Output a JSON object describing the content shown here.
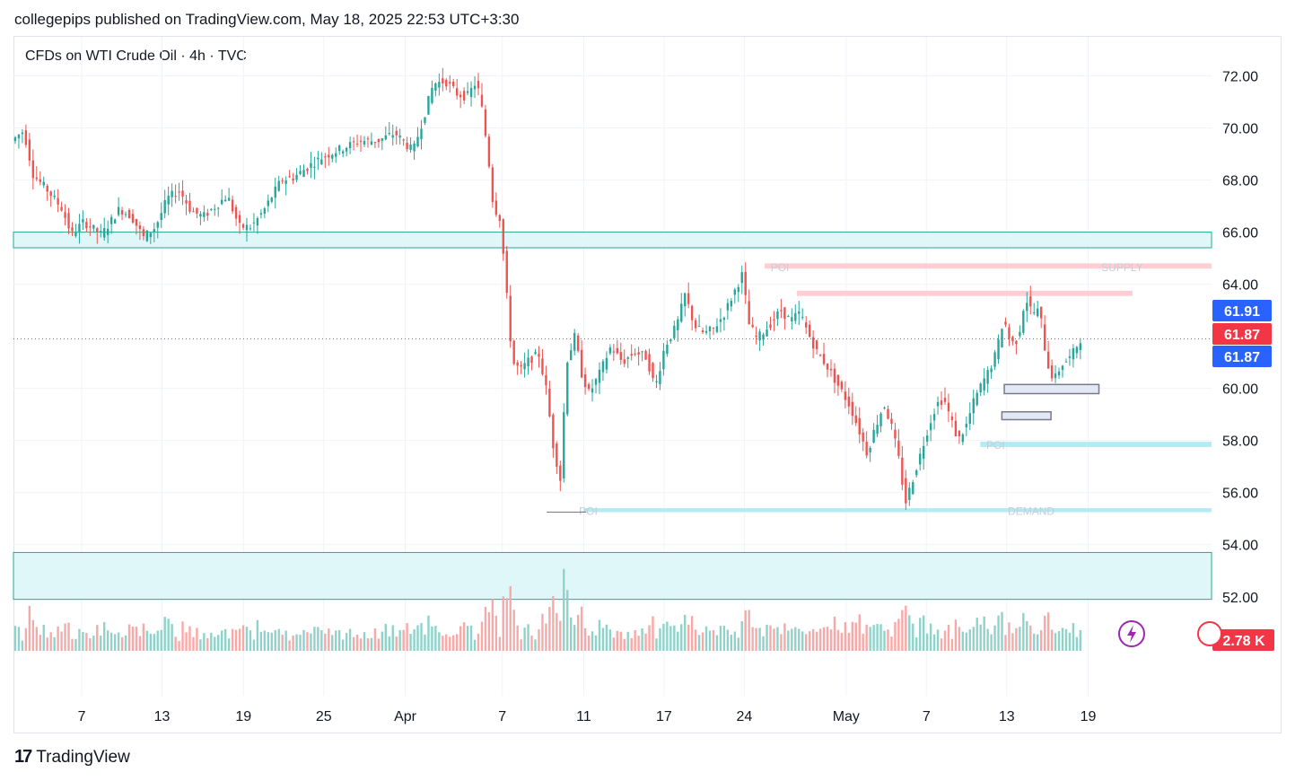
{
  "header": {
    "published_by": "collegepips published on TradingView.com, May 18, 2025 22:53 UTC+3:30"
  },
  "symbol": {
    "title": "CFDs on WTI Crude Oil · 4h · TVC"
  },
  "footer": {
    "brand": "TradingView",
    "logo_mark": "17"
  },
  "colors": {
    "up": "#26a69a",
    "down": "#ef5350",
    "zone_teal": "#b2ebf2",
    "zone_red": "#ffcdd2",
    "price_blue": "#2962ff",
    "price_red": "#f23645"
  },
  "chart_data": {
    "type": "candlestick",
    "title": "CFDs on WTI Crude Oil · 4h · TVC",
    "ylim": [
      48.2,
      73.5
    ],
    "y_ticks": [
      "72.00",
      "70.00",
      "68.00",
      "66.00",
      "64.00",
      "60.00",
      "58.00",
      "56.00",
      "54.00",
      "52.00"
    ],
    "x_ticks": [
      {
        "label": "7",
        "t": 0.057
      },
      {
        "label": "13",
        "t": 0.124
      },
      {
        "label": "19",
        "t": 0.192
      },
      {
        "label": "25",
        "t": 0.259
      },
      {
        "label": "Apr",
        "t": 0.327
      },
      {
        "label": "7",
        "t": 0.408
      },
      {
        "label": "11",
        "t": 0.476
      },
      {
        "label": "17",
        "t": 0.543
      },
      {
        "label": "24",
        "t": 0.61
      },
      {
        "label": "May",
        "t": 0.695
      },
      {
        "label": "7",
        "t": 0.762
      },
      {
        "label": "13",
        "t": 0.829
      },
      {
        "label": "19",
        "t": 0.897
      }
    ],
    "price_path": [
      [
        0.0,
        69.5
      ],
      [
        0.01,
        69.9
      ],
      [
        0.018,
        68.2
      ],
      [
        0.03,
        67.6
      ],
      [
        0.042,
        66.9
      ],
      [
        0.05,
        65.9
      ],
      [
        0.06,
        66.4
      ],
      [
        0.075,
        65.9
      ],
      [
        0.09,
        66.9
      ],
      [
        0.1,
        66.6
      ],
      [
        0.11,
        65.8
      ],
      [
        0.12,
        66.2
      ],
      [
        0.13,
        67.3
      ],
      [
        0.14,
        67.6
      ],
      [
        0.15,
        66.8
      ],
      [
        0.16,
        66.6
      ],
      [
        0.17,
        67.0
      ],
      [
        0.18,
        67.4
      ],
      [
        0.19,
        66.2
      ],
      [
        0.2,
        66.2
      ],
      [
        0.21,
        66.8
      ],
      [
        0.225,
        68.0
      ],
      [
        0.235,
        68.1
      ],
      [
        0.25,
        68.6
      ],
      [
        0.26,
        68.9
      ],
      [
        0.275,
        69.2
      ],
      [
        0.29,
        69.5
      ],
      [
        0.305,
        69.5
      ],
      [
        0.32,
        69.8
      ],
      [
        0.335,
        69.1
      ],
      [
        0.345,
        70.6
      ],
      [
        0.352,
        71.7
      ],
      [
        0.362,
        71.8
      ],
      [
        0.372,
        71.3
      ],
      [
        0.38,
        71.2
      ],
      [
        0.388,
        71.8
      ],
      [
        0.393,
        70.6
      ],
      [
        0.398,
        68.8
      ],
      [
        0.402,
        67.0
      ],
      [
        0.408,
        66.5
      ],
      [
        0.412,
        64.2
      ],
      [
        0.418,
        61.0
      ],
      [
        0.425,
        60.7
      ],
      [
        0.432,
        61.1
      ],
      [
        0.44,
        61.3
      ],
      [
        0.446,
        60.0
      ],
      [
        0.452,
        57.8
      ],
      [
        0.458,
        56.5
      ],
      [
        0.463,
        61.0
      ],
      [
        0.47,
        62.0
      ],
      [
        0.476,
        60.5
      ],
      [
        0.482,
        59.8
      ],
      [
        0.49,
        60.5
      ],
      [
        0.5,
        61.6
      ],
      [
        0.51,
        61.0
      ],
      [
        0.52,
        61.4
      ],
      [
        0.53,
        61.2
      ],
      [
        0.537,
        60.0
      ],
      [
        0.545,
        61.6
      ],
      [
        0.555,
        62.4
      ],
      [
        0.562,
        63.6
      ],
      [
        0.57,
        62.4
      ],
      [
        0.578,
        62.1
      ],
      [
        0.586,
        62.3
      ],
      [
        0.594,
        62.8
      ],
      [
        0.602,
        63.6
      ],
      [
        0.61,
        64.4
      ],
      [
        0.615,
        62.5
      ],
      [
        0.622,
        61.9
      ],
      [
        0.632,
        62.4
      ],
      [
        0.642,
        63.0
      ],
      [
        0.65,
        62.6
      ],
      [
        0.658,
        62.9
      ],
      [
        0.664,
        62.2
      ],
      [
        0.672,
        61.4
      ],
      [
        0.68,
        60.9
      ],
      [
        0.69,
        60.1
      ],
      [
        0.7,
        59.3
      ],
      [
        0.708,
        58.3
      ],
      [
        0.714,
        57.5
      ],
      [
        0.72,
        58.4
      ],
      [
        0.728,
        59.4
      ],
      [
        0.734,
        58.6
      ],
      [
        0.74,
        57.4
      ],
      [
        0.746,
        55.6
      ],
      [
        0.752,
        56.5
      ],
      [
        0.758,
        57.4
      ],
      [
        0.765,
        58.5
      ],
      [
        0.772,
        59.4
      ],
      [
        0.778,
        59.6
      ],
      [
        0.784,
        58.8
      ],
      [
        0.79,
        58.0
      ],
      [
        0.797,
        58.6
      ],
      [
        0.803,
        59.5
      ],
      [
        0.81,
        60.2
      ],
      [
        0.816,
        60.7
      ],
      [
        0.822,
        61.4
      ],
      [
        0.828,
        62.7
      ],
      [
        0.834,
        61.7
      ],
      [
        0.84,
        61.9
      ],
      [
        0.846,
        63.5
      ],
      [
        0.852,
        62.9
      ],
      [
        0.858,
        63.0
      ],
      [
        0.864,
        61.0
      ],
      [
        0.87,
        60.3
      ],
      [
        0.876,
        60.9
      ],
      [
        0.884,
        61.2
      ],
      [
        0.892,
        61.9
      ]
    ],
    "current_price_labels": [
      "61.91",
      "61.87",
      "61.87"
    ],
    "volume_label": "2.78 K",
    "zones": [
      {
        "name": "resistance-band",
        "y1": 66.0,
        "y2": 65.4,
        "color": "#e0f7fa"
      },
      {
        "name": "supply-zone",
        "y1": 64.8,
        "y2": 64.6,
        "label": "SUPPLY",
        "poi_label": "POI"
      },
      {
        "name": "supply-zone-2",
        "y1": 63.75,
        "y2": 63.55
      },
      {
        "name": "demand-poi",
        "y1": 57.95,
        "y2": 57.75,
        "label": "POI"
      },
      {
        "name": "demand-zone",
        "y1": 55.4,
        "y2": 55.25,
        "label": "DEMAND",
        "poi_label": "POI"
      },
      {
        "name": "lower-band",
        "y1": 53.7,
        "y2": 51.9,
        "color": "#e0f7fa"
      }
    ],
    "zone_labels": [
      "POI",
      "SUPPLY",
      "POI",
      "POI",
      "DEMAND"
    ]
  }
}
